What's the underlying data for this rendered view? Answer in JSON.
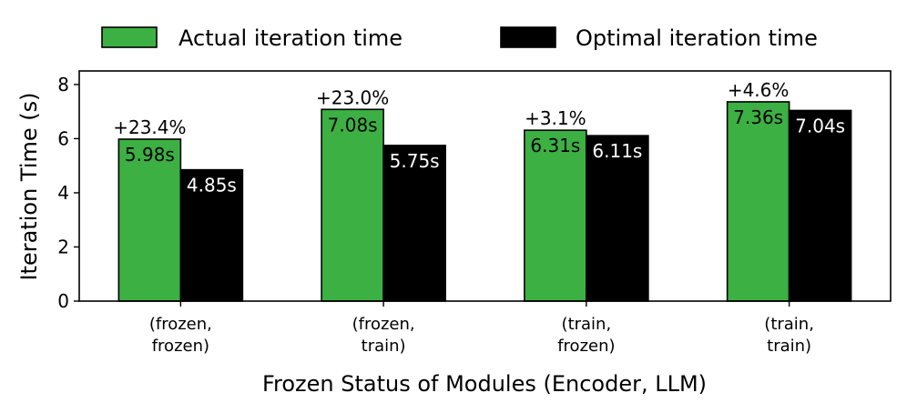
{
  "chart_data": {
    "type": "bar",
    "xlabel": "Frozen Status of Modules (Encoder, LLM)",
    "ylabel": "Iteration Time (s)",
    "ylim": [
      0,
      8.5
    ],
    "yticks": [
      0,
      2,
      4,
      6,
      8
    ],
    "categories": [
      [
        "(frozen,",
        "frozen)"
      ],
      [
        "(frozen,",
        "train)"
      ],
      [
        "(train,",
        "frozen)"
      ],
      [
        "(train,",
        "train)"
      ]
    ],
    "series": [
      {
        "name": "Actual iteration time",
        "color": "#3cb043",
        "values": [
          5.98,
          7.08,
          6.31,
          7.36
        ],
        "labels": [
          "5.98s",
          "7.08s",
          "6.31s",
          "7.36s"
        ]
      },
      {
        "name": "Optimal iteration time",
        "color": "#000000",
        "values": [
          4.85,
          5.75,
          6.11,
          7.04
        ],
        "labels": [
          "4.85s",
          "5.75s",
          "6.11s",
          "7.04s"
        ]
      }
    ],
    "annotations": [
      "+23.4%",
      "+23.0%",
      "+3.1%",
      "+4.6%"
    ],
    "legend_position": "top",
    "grid": false
  }
}
